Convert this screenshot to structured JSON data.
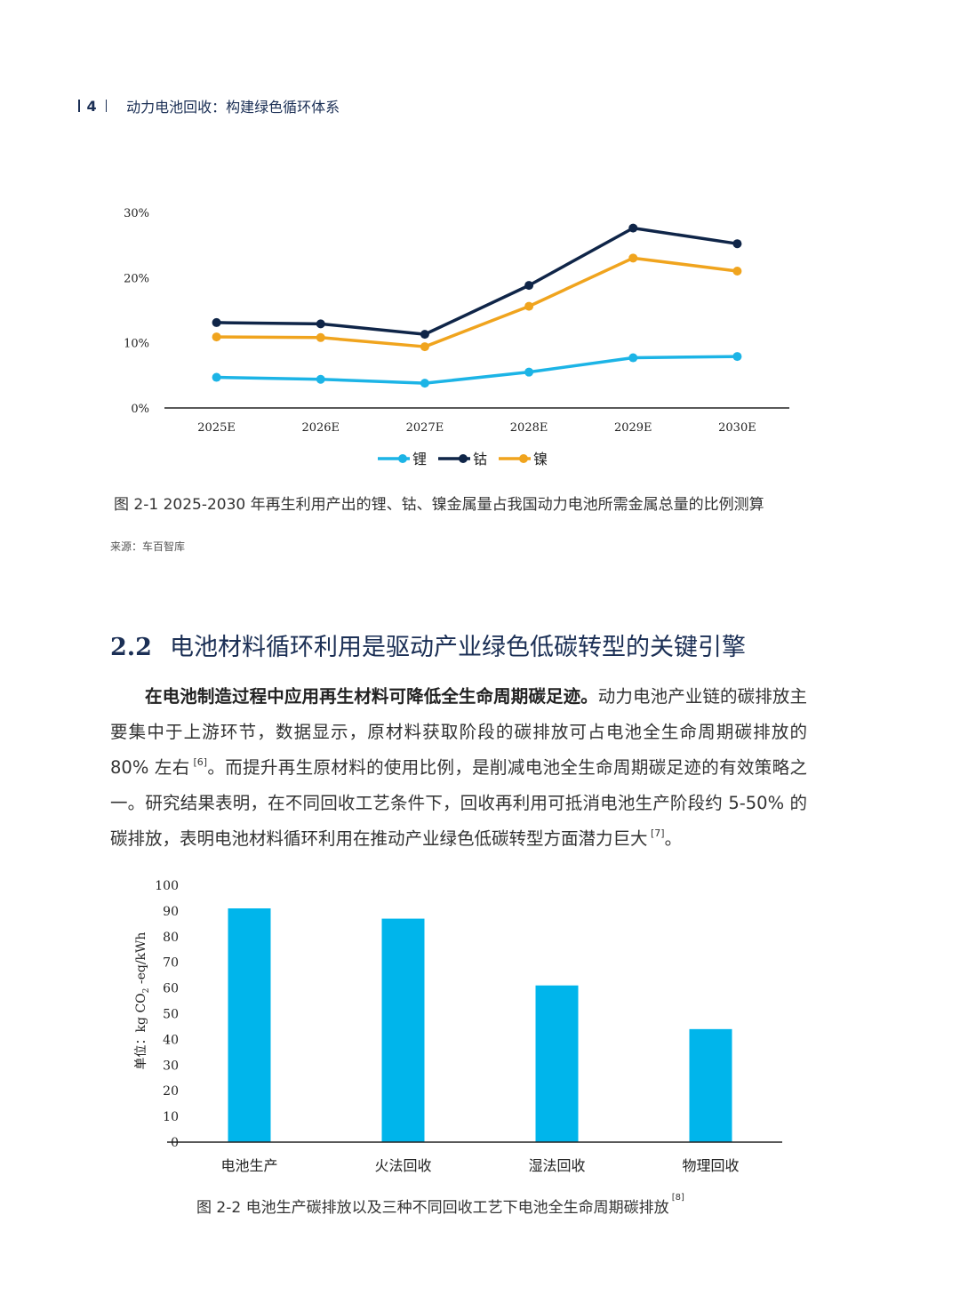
{
  "header": {
    "page_number": "4",
    "title": "动力电池回收：构建绿色循环体系"
  },
  "figure1": {
    "caption": "图 2-1  2025-2030 年再生利用产出的锂、钴、镍金属量占我国动力电池所需金属总量的比例测算",
    "source": "来源：车百智库"
  },
  "section": {
    "number": "2.2",
    "title": "电池材料循环利用是驱动产业绿色低碳转型的关键引擎"
  },
  "body": {
    "lead": "在电池制造过程中应用再生材料可降低全生命周期碳足迹。",
    "text1": "动力电池产业链的碳排放主要集中于上游环节，数据显示，原材料获取阶段的碳排放可占电池全生命周期碳排放的 80% 左右",
    "ref1": " [6]",
    "text2": "。而提升再生原材料的使用比例，是削减电池全生命周期碳足迹的有效策略之一。研究结果表明，在不同回收工艺条件下，回收再利用可抵消电池生产阶段约 5-50% 的碳排放，表明电池材料循环利用在推动产业绿色低碳转型方面潜力巨大",
    "ref2": " [7]",
    "text3": "。"
  },
  "figure2": {
    "caption": "图 2-2  电池生产碳排放以及三种不同回收工艺下电池全生命周期碳排放",
    "ref": " [8]"
  },
  "chart_data": [
    {
      "type": "line",
      "x": [
        "2025E",
        "2026E",
        "2027E",
        "2028E",
        "2029E",
        "2030E"
      ],
      "series": [
        {
          "name": "锂",
          "color": "#1cb4e6",
          "values": [
            4.7,
            4.4,
            3.8,
            5.5,
            7.7,
            7.9
          ]
        },
        {
          "name": "钴",
          "color": "#0f2548",
          "values": [
            13.1,
            12.9,
            11.3,
            18.8,
            27.6,
            25.2
          ]
        },
        {
          "name": "镍",
          "color": "#f0a41e",
          "values": [
            10.9,
            10.8,
            9.4,
            15.6,
            23.0,
            21.0
          ]
        }
      ],
      "yticks": [
        "0%",
        "10%",
        "20%",
        "30%"
      ],
      "ylim": [
        0,
        30
      ],
      "grid": false,
      "legend": "bottom"
    },
    {
      "type": "bar",
      "categories": [
        "电池生产",
        "火法回收",
        "湿法回收",
        "物理回收"
      ],
      "values": [
        91,
        87,
        61,
        44
      ],
      "color": "#00b5eb",
      "yticks": [
        "0",
        "10",
        "20",
        "30",
        "40",
        "50",
        "60",
        "70",
        "80",
        "90",
        "100"
      ],
      "ylim": [
        0,
        100
      ],
      "ylabel_prefix": "单位：kg CO",
      "ylabel_sub": "2",
      "ylabel_suffix": " -eq/kWh",
      "grid": false
    }
  ]
}
